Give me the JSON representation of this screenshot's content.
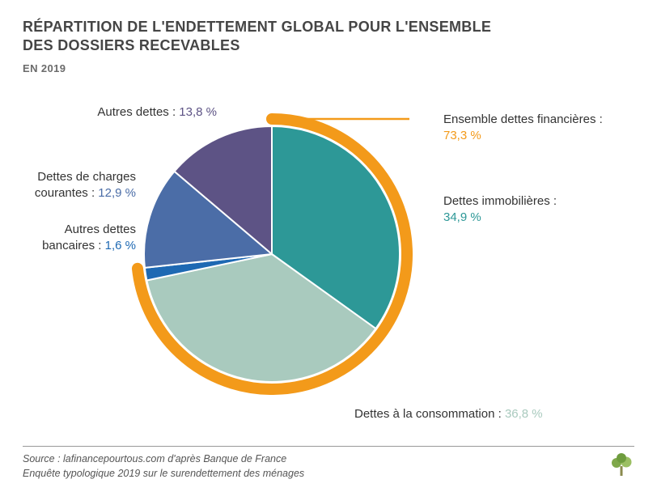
{
  "title_line1": "RÉPARTITION DE L'ENDETTEMENT GLOBAL POUR L'ENSEMBLE",
  "title_line2": "DES DOSSIERS RECEVABLES",
  "subtitle": "EN 2019",
  "chart": {
    "type": "pie",
    "background_color": "#ffffff",
    "arc": {
      "label": "Ensemble dettes financières :",
      "value": "73,3 %",
      "color": "#f39a1a",
      "stroke_width": 14,
      "start_deg": 0,
      "end_deg": 263.88
    },
    "slices": [
      {
        "key": "immobilieres",
        "label": "Dettes immobilières :",
        "value": "34,9 %",
        "pct": 34.9,
        "color": "#2d9897"
      },
      {
        "key": "consommation",
        "label": "Dettes à la consommation :",
        "value": "36,8 %",
        "pct": 36.8,
        "color": "#a9cabe"
      },
      {
        "key": "bancaires",
        "label": "Autres dettes bancaires :",
        "value": "1,6 %",
        "pct": 1.6,
        "color": "#1e69b3"
      },
      {
        "key": "charges",
        "label": "Dettes de charges courantes :",
        "value": "12,9 %",
        "pct": 12.9,
        "color": "#4b6da7"
      },
      {
        "key": "autres",
        "label": "Autres dettes :",
        "value": "13,8 %",
        "pct": 13.8,
        "color": "#5d5385"
      }
    ],
    "title_fontsize": 18,
    "label_fontsize": 15,
    "stroke_color": "#ffffff",
    "stroke_width": 2
  },
  "labels": {
    "arc": {
      "name": "Ensemble dettes financières :",
      "val": "73,3 %",
      "val_color": "#f39a1a"
    },
    "immobilieres": {
      "name": "Dettes immobilières :",
      "val": "34,9 %",
      "val_color": "#2d9897"
    },
    "consommation": {
      "name": "Dettes à la consommation :",
      "val": "36,8 %",
      "val_color": "#a9cabe"
    },
    "bancaires": {
      "name": "Autres dettes",
      "name2": "bancaires :",
      "val": "1,6 %",
      "val_color": "#1e69b3"
    },
    "charges": {
      "name": "Dettes de charges",
      "name2": "courantes :",
      "val": "12,9 %",
      "val_color": "#4b6da7"
    },
    "autres": {
      "name": "Autres dettes :",
      "val": "13,8 %",
      "val_color": "#5d5385"
    }
  },
  "source_line1": "Source : lafinancepourtous.com d'après Banque de France",
  "source_line2": "Enquête typologique 2019 sur le surendettement des ménages",
  "logo_color_trunk": "#8a8a4e",
  "logo_color_leaves": "#7fa84a"
}
